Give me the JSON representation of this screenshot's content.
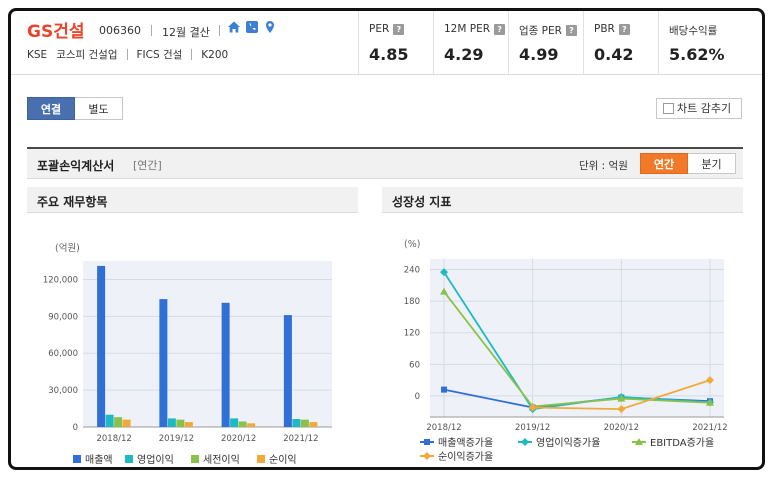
{
  "company": {
    "name": "GS건설",
    "code": "006360",
    "settlement": "12월 결산",
    "market": "KSE",
    "sector1": "코스피 건설업",
    "sector2": "FICS 건설",
    "index": "K200",
    "icons": [
      "home-icon",
      "phone-icon",
      "map-pin-icon"
    ],
    "accent": "#e8452c"
  },
  "metrics": [
    {
      "label": "PER",
      "value": "4.85",
      "help": true
    },
    {
      "label": "12M PER",
      "value": "4.29",
      "help": true
    },
    {
      "label": "업종 PER",
      "value": "4.99",
      "help": true
    },
    {
      "label": "PBR",
      "value": "0.42",
      "help": true
    },
    {
      "label": "배당수익률",
      "value": "5.62%",
      "help": false
    }
  ],
  "tabs": [
    {
      "label": "연결",
      "active": true
    },
    {
      "label": "별도",
      "active": false
    }
  ],
  "hide_chart_label": "차트 감추기",
  "section": {
    "title": "포괄손익계산서",
    "subtitle": "[연간]",
    "unit": "단위 : 억원",
    "period_toggle": [
      {
        "label": "연간",
        "active": true
      },
      {
        "label": "분기",
        "active": false
      }
    ]
  },
  "left_panel": {
    "title": "주요 재무항목"
  },
  "right_panel": {
    "title": "성장성 지표"
  },
  "chart_data": [
    {
      "type": "bar",
      "unit_label": "(억원)",
      "categories": [
        "2018/12",
        "2019/12",
        "2020/12",
        "2021/12"
      ],
      "ylim": [
        0,
        135000
      ],
      "yticks": [
        0,
        30000,
        60000,
        90000,
        120000
      ],
      "ytick_labels": [
        "0",
        "30,000",
        "60,000",
        "90,000",
        "120,000"
      ],
      "series": [
        {
          "name": "매출액",
          "color": "#2f6fd6",
          "values": [
            131000,
            104000,
            101000,
            91000
          ]
        },
        {
          "name": "영업이익",
          "color": "#1fb9c6",
          "values": [
            10000,
            7000,
            7000,
            6500
          ]
        },
        {
          "name": "세전이익",
          "color": "#8ac14a",
          "values": [
            8000,
            6000,
            4500,
            6000
          ]
        },
        {
          "name": "순이익",
          "color": "#f2a93b",
          "values": [
            6000,
            4000,
            3000,
            4000
          ]
        }
      ],
      "grid": true,
      "legend": "bottom"
    },
    {
      "type": "line",
      "unit_label": "(%)",
      "categories": [
        "2018/12",
        "2019/12",
        "2020/12",
        "2021/12"
      ],
      "ylim": [
        -40,
        260
      ],
      "yticks": [
        0,
        60,
        120,
        180,
        240
      ],
      "ytick_labels": [
        "0",
        "60",
        "120",
        "180",
        "240"
      ],
      "series": [
        {
          "name": "매출액증가율",
          "color": "#2f6fd6",
          "marker": "square",
          "values": [
            12,
            -22,
            -3,
            -10
          ]
        },
        {
          "name": "영업이익증가율",
          "color": "#1fb9c6",
          "marker": "diamond",
          "values": [
            235,
            -25,
            -2,
            -12
          ]
        },
        {
          "name": "EBITDA증가율",
          "color": "#8ac14a",
          "marker": "triangle",
          "values": [
            198,
            -20,
            -5,
            -13
          ]
        },
        {
          "name": "순이익증가율",
          "color": "#f2a93b",
          "marker": "diamond",
          "values": [
            null,
            -22,
            -25,
            30
          ]
        }
      ],
      "grid": true,
      "legend": "bottom"
    }
  ]
}
